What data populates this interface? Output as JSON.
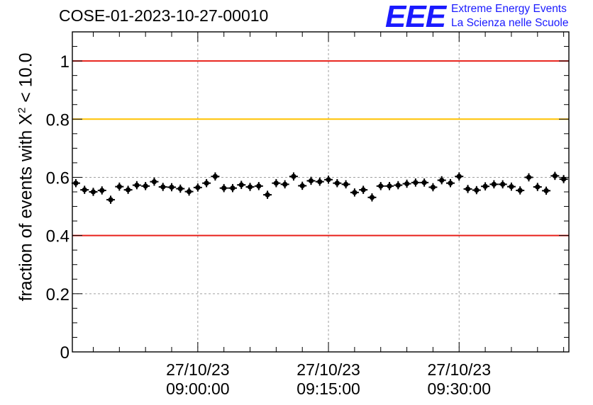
{
  "chart_data": {
    "type": "scatter",
    "title": "COSE-01-2023-10-27-00010",
    "ylabel_prefix": "fraction of events with",
    "ylabel_symbol": "X",
    "ylabel_exponent": "2",
    "ylabel_suffix": "< 10.0",
    "ylim": [
      0,
      1.1
    ],
    "y_ticks": [
      0,
      0.2,
      0.4,
      0.6,
      0.8,
      1
    ],
    "y_tick_labels": [
      "0",
      "0.2",
      "0.4",
      "0.6",
      "0.8",
      "1"
    ],
    "x_range_minutes": [
      -14.4,
      42.6
    ],
    "x_ticks": [
      {
        "minutes": 0,
        "date": "27/10/23",
        "time": "09:00:00"
      },
      {
        "minutes": 15,
        "date": "27/10/23",
        "time": "09:15:00"
      },
      {
        "minutes": 30,
        "date": "27/10/23",
        "time": "09:30:00"
      }
    ],
    "grid": true,
    "reference_lines": [
      {
        "y": 1.0,
        "color": "#e8201a"
      },
      {
        "y": 0.8,
        "color": "#ffc200"
      },
      {
        "y": 0.4,
        "color": "#e8201a"
      }
    ],
    "points_minutes": [
      -14.0,
      -13.0,
      -12.0,
      -11.0,
      -10.0,
      -9.0,
      -8.0,
      -7.0,
      -6.0,
      -5.0,
      -4.0,
      -3.0,
      -2.0,
      -1.0,
      0.0,
      1.0,
      2.0,
      3.0,
      4.0,
      5.0,
      6.0,
      7.0,
      8.0,
      9.0,
      10.0,
      11.0,
      12.0,
      13.0,
      14.0,
      15.0,
      16.0,
      17.0,
      18.0,
      19.0,
      20.0,
      21.0,
      22.0,
      23.0,
      24.0,
      25.0,
      26.0,
      27.0,
      28.0,
      29.0,
      30.0,
      31.0,
      32.0,
      33.0,
      34.0,
      35.0,
      36.0,
      37.0,
      38.0,
      39.0,
      40.0,
      41.0,
      42.0
    ],
    "values": [
      0.58,
      0.557,
      0.55,
      0.555,
      0.523,
      0.568,
      0.557,
      0.573,
      0.57,
      0.585,
      0.567,
      0.566,
      0.561,
      0.551,
      0.565,
      0.58,
      0.603,
      0.563,
      0.563,
      0.574,
      0.567,
      0.57,
      0.54,
      0.58,
      0.576,
      0.603,
      0.571,
      0.588,
      0.585,
      0.592,
      0.58,
      0.576,
      0.548,
      0.557,
      0.531,
      0.57,
      0.57,
      0.573,
      0.578,
      0.582,
      0.582,
      0.566,
      0.59,
      0.58,
      0.603,
      0.56,
      0.556,
      0.569,
      0.576,
      0.576,
      0.568,
      0.555,
      0.6,
      0.567,
      0.554,
      0.605,
      0.594
    ],
    "error": 0.014,
    "marker_color": "#000000"
  },
  "logo": {
    "mark": "EEE",
    "line1": "Extreme Energy Events",
    "line2": "La Scienza nelle Scuole"
  }
}
